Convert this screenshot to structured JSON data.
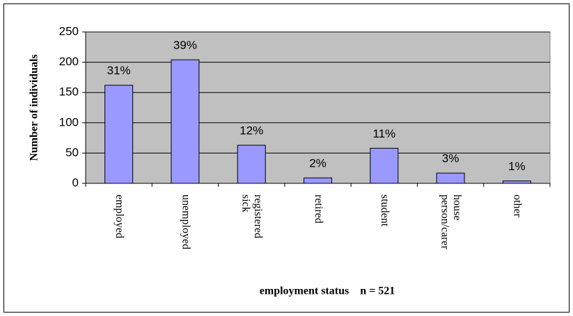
{
  "chart_data": {
    "type": "bar",
    "y_label": "Number of individuals",
    "x_label": "employment status    n = 521",
    "categories": [
      "employed",
      "unemployed",
      "registered sick",
      "retired",
      "student",
      "house person/carer",
      "other"
    ],
    "values": [
      162,
      204,
      63,
      9,
      58,
      17,
      4
    ],
    "value_labels": [
      "31%",
      "39%",
      "12%",
      "2%",
      "11%",
      "3%",
      "1%"
    ],
    "color": "#9999ff",
    "ylim": [
      0,
      250
    ],
    "yticks": [
      0,
      50,
      100,
      150,
      200,
      250
    ],
    "grid": true
  }
}
